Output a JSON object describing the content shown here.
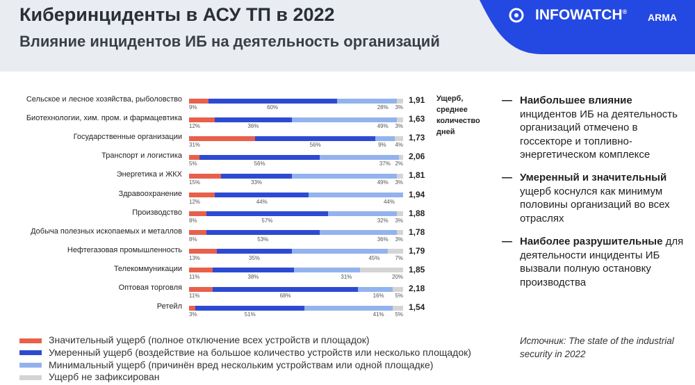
{
  "header": {
    "title": "Киберинциденты в АСУ ТП в 2022",
    "subtitle": "Влияние инцидентов ИБ на деятельность организаций",
    "logo": "INFOWATCH",
    "logo_mark": "®",
    "logo2": "ARMA"
  },
  "chart_data": {
    "type": "bar",
    "orientation": "horizontal",
    "stacked": true,
    "xlim": [
      0,
      100
    ],
    "categories": [
      "Сельское и лесное хозяйства, рыболовство",
      "Биотехнологии, хим. пром. и фармацевтика",
      "Государственные организации",
      "Транспорт и логистика",
      "Энергетика и ЖКХ",
      "Здравоохранение",
      "Производство",
      "Добыча полезных ископаемых и металлов",
      "Нефтегазовая промышленность",
      "Телекоммуникации",
      "Оптовая торговля",
      "Ретейл"
    ],
    "series": [
      {
        "name": "Значительный ущерб (полное отключение всех устройств и площадок)",
        "color": "#e8604c",
        "values": [
          9,
          12,
          31,
          5,
          15,
          12,
          8,
          8,
          13,
          11,
          11,
          3
        ],
        "value_labels": [
          "9%",
          "12%",
          "31%",
          "5%",
          "15%",
          "12%",
          "8%",
          "8%",
          "13%",
          "11%",
          "11%",
          "3%"
        ]
      },
      {
        "name": "Умеренный ущерб (воздействие на большое количество устройств или несколько площадок)",
        "color": "#2d4bd2",
        "values": [
          60,
          36,
          56,
          56,
          33,
          44,
          57,
          53,
          35,
          38,
          68,
          51
        ],
        "value_labels": [
          "60%",
          "36%",
          "56%",
          "56%",
          "33%",
          "44%",
          "57%",
          "53%",
          "35%",
          "38%",
          "68%",
          "51%"
        ]
      },
      {
        "name": "Минимальный ущерб (причинён вред нескольким устройствам или одной площадке)",
        "color": "#93b3ee",
        "values": [
          28,
          49,
          9,
          37,
          49,
          44,
          32,
          36,
          45,
          31,
          16,
          41
        ],
        "value_labels": [
          "28%",
          "49%",
          "9%",
          "37%",
          "49%",
          "44%",
          "32%",
          "36%",
          "45%",
          "31%",
          "16%",
          "41%"
        ]
      },
      {
        "name": "Ущерб не зафиксирован",
        "color": "#d4d4d4",
        "values": [
          3,
          3,
          4,
          2,
          3,
          0,
          3,
          3,
          7,
          20,
          5,
          5
        ],
        "value_labels": [
          "3%",
          "3%",
          "4%",
          "2%",
          "3%",
          null,
          "3%",
          "3%",
          "7%",
          "20%",
          "5%",
          "5%"
        ]
      }
    ],
    "averages": {
      "title": "Ущерб, среднее количество дней",
      "values": [
        1.91,
        1.63,
        1.73,
        2.06,
        1.81,
        1.94,
        1.88,
        1.78,
        1.79,
        1.85,
        2.18,
        1.54
      ],
      "value_labels": [
        "1,91",
        "1,63",
        "1,73",
        "2,06",
        "1,81",
        "1,94",
        "1,88",
        "1,78",
        "1,79",
        "1,85",
        "2,18",
        "1,54"
      ]
    }
  },
  "notes": [
    {
      "bold": "Наибольшее влияние",
      "text": "инцидентов ИБ на деятельность организаций отмечено в госсекторе и топливно-энергетическом комплексе"
    },
    {
      "bold": "Умеренный и значительный",
      "text": "ущерб коснулся как минимум половины организаций во всех отраслях"
    },
    {
      "bold": "Наиболее разрушительные",
      "text": "для деятельности инциденты ИБ вызвали полную остановку производства"
    }
  ],
  "source": "Источник: The state of the industrial security in 2022"
}
